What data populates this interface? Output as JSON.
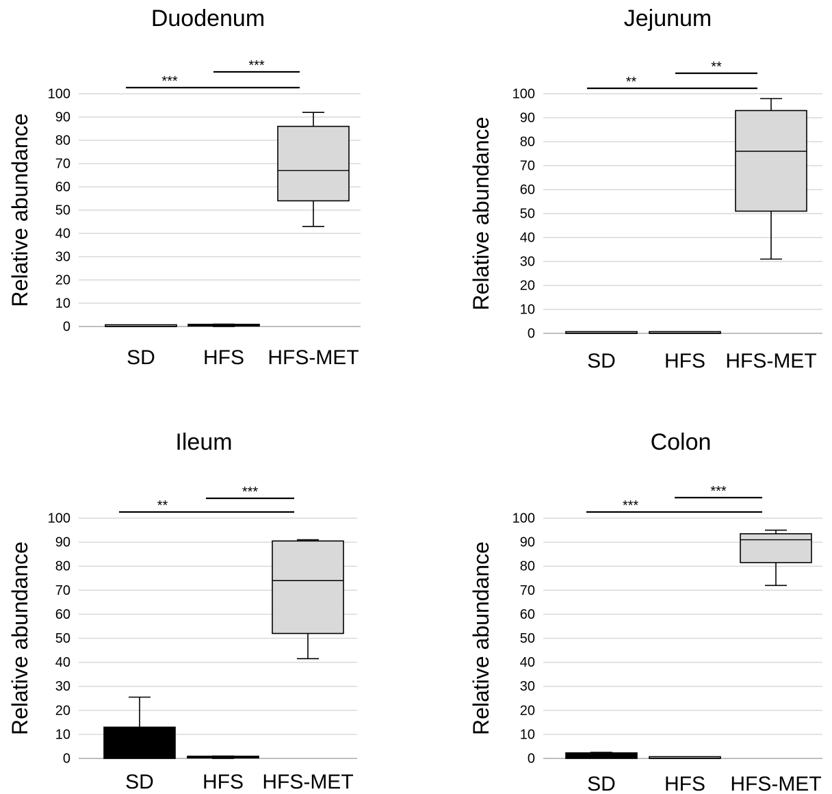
{
  "colors": {
    "box_fill": "#d9d9d9",
    "black_box_fill": "#000000",
    "stroke": "#000000",
    "grid": "#d9d9d9"
  },
  "chart_data": [
    {
      "type": "box",
      "title": "Duodenum",
      "ylabel": "Relative abundance",
      "xlabel": "",
      "ylim": [
        0,
        100
      ],
      "yticks": [
        0,
        10,
        20,
        30,
        40,
        50,
        60,
        70,
        80,
        90,
        100
      ],
      "grid": true,
      "categories": [
        "SD",
        "HFS",
        "HFS-MET"
      ],
      "boxes": [
        {
          "category": "SD",
          "min": 0,
          "q1": 0,
          "median": 0,
          "q3": 0.3,
          "max": 0.5,
          "fill": "#d9d9d9"
        },
        {
          "category": "HFS",
          "min": 0,
          "q1": 0.2,
          "median": 0.5,
          "q3": 0.8,
          "max": 1,
          "fill": "#d9d9d9"
        },
        {
          "category": "HFS-MET",
          "min": 43,
          "q1": 54,
          "median": 67,
          "q3": 86,
          "max": 92,
          "fill": "#d9d9d9"
        }
      ],
      "significance": [
        {
          "from": "HFS",
          "to": "HFS-MET",
          "label": "***"
        },
        {
          "from": "SD",
          "to": "HFS-MET",
          "label": "***"
        }
      ]
    },
    {
      "type": "box",
      "title": "Jejunum",
      "ylabel": "Relative abundance",
      "xlabel": "",
      "ylim": [
        0,
        100
      ],
      "yticks": [
        0,
        10,
        20,
        30,
        40,
        50,
        60,
        70,
        80,
        90,
        100
      ],
      "grid": true,
      "categories": [
        "SD",
        "HFS",
        "HFS-MET"
      ],
      "boxes": [
        {
          "category": "SD",
          "min": 0,
          "q1": 0,
          "median": 0,
          "q3": 0.2,
          "max": 0.3,
          "fill": "#d9d9d9"
        },
        {
          "category": "HFS",
          "min": 0,
          "q1": 0,
          "median": 0,
          "q3": 0.2,
          "max": 0.3,
          "fill": "#d9d9d9"
        },
        {
          "category": "HFS-MET",
          "min": 31,
          "q1": 51,
          "median": 76,
          "q3": 93,
          "max": 98,
          "fill": "#d9d9d9"
        }
      ],
      "significance": [
        {
          "from": "HFS",
          "to": "HFS-MET",
          "label": "**"
        },
        {
          "from": "SD",
          "to": "HFS-MET",
          "label": "**"
        }
      ]
    },
    {
      "type": "box",
      "title": "Ileum",
      "ylabel": "Relative abundance",
      "xlabel": "",
      "ylim": [
        0,
        100
      ],
      "yticks": [
        0,
        10,
        20,
        30,
        40,
        50,
        60,
        70,
        80,
        90,
        100
      ],
      "grid": true,
      "categories": [
        "SD",
        "HFS",
        "HFS-MET"
      ],
      "boxes": [
        {
          "category": "SD",
          "min": 0,
          "q1": 0,
          "median": 0.5,
          "q3": 13,
          "max": 25.5,
          "fill": "#000000"
        },
        {
          "category": "HFS",
          "min": 0,
          "q1": 0.2,
          "median": 0.5,
          "q3": 0.8,
          "max": 1,
          "fill": "#d9d9d9"
        },
        {
          "category": "HFS-MET",
          "min": 41.5,
          "q1": 52,
          "median": 74,
          "q3": 90.5,
          "max": 91,
          "fill": "#d9d9d9"
        }
      ],
      "significance": [
        {
          "from": "HFS",
          "to": "HFS-MET",
          "label": "***"
        },
        {
          "from": "SD",
          "to": "HFS-MET",
          "label": "**"
        }
      ]
    },
    {
      "type": "box",
      "title": "Colon",
      "ylabel": "Relative abundance",
      "xlabel": "",
      "ylim": [
        0,
        100
      ],
      "yticks": [
        0,
        10,
        20,
        30,
        40,
        50,
        60,
        70,
        80,
        90,
        100
      ],
      "grid": true,
      "categories": [
        "SD",
        "HFS",
        "HFS-MET"
      ],
      "boxes": [
        {
          "category": "SD",
          "min": 0,
          "q1": 0,
          "median": 1,
          "q3": 2.3,
          "max": 2.5,
          "fill": "#000000"
        },
        {
          "category": "HFS",
          "min": 0,
          "q1": 0,
          "median": 0,
          "q3": 0.3,
          "max": 0.5,
          "fill": "#d9d9d9"
        },
        {
          "category": "HFS-MET",
          "min": 72,
          "q1": 81.5,
          "median": 91,
          "q3": 93.5,
          "max": 95,
          "fill": "#d9d9d9"
        }
      ],
      "significance": [
        {
          "from": "HFS",
          "to": "HFS-MET",
          "label": "***"
        },
        {
          "from": "SD",
          "to": "HFS-MET",
          "label": "***"
        }
      ]
    }
  ]
}
